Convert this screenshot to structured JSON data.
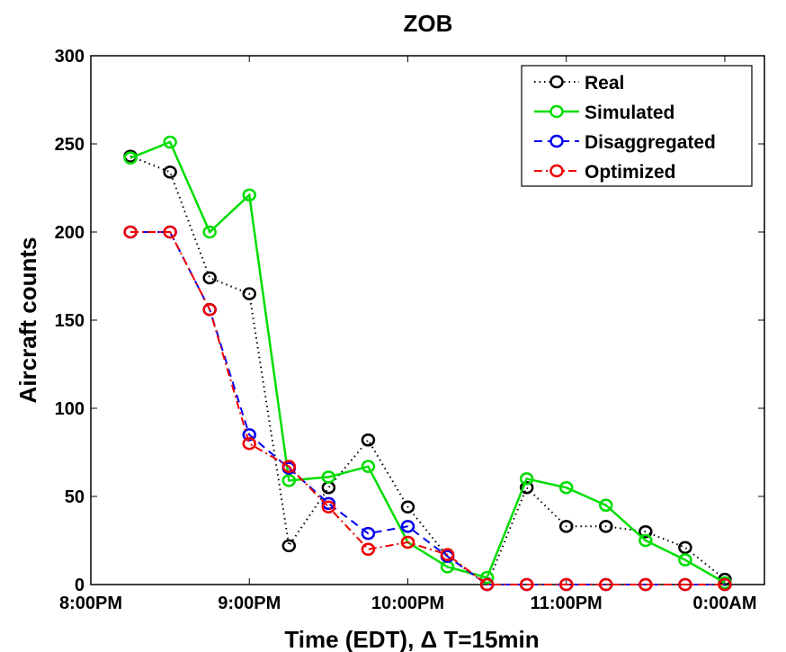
{
  "chart_data": {
    "type": "line",
    "title": "ZOB",
    "xlabel": "Time (EDT), Δ T=15min",
    "ylabel": "Aircraft counts",
    "x": [
      0.25,
      0.5,
      0.75,
      1.0,
      1.25,
      1.5,
      1.75,
      2.0,
      2.25,
      2.5,
      2.75,
      3.0,
      3.25,
      3.5,
      3.75,
      4.0
    ],
    "xlim": [
      0,
      4.25
    ],
    "ylim": [
      0,
      300
    ],
    "xticks": [
      0,
      1,
      2,
      3,
      4
    ],
    "xtick_labels": [
      "8:00PM",
      "9:00PM",
      "10:00PM",
      "11:00PM",
      "0:00AM"
    ],
    "yticks": [
      0,
      50,
      100,
      150,
      200,
      250,
      300
    ],
    "ytick_labels": [
      "0",
      "50",
      "100",
      "150",
      "200",
      "250",
      "300"
    ],
    "grid": false,
    "legend_position": "top-right",
    "series": [
      {
        "name": "Real",
        "color": "#000000",
        "dash": "dotted",
        "values": [
          243,
          234,
          174,
          165,
          22,
          55,
          82,
          44,
          16,
          0,
          55,
          33,
          33,
          30,
          21,
          3
        ]
      },
      {
        "name": "Simulated",
        "color": "#00dd00",
        "dash": "solid",
        "values": [
          242,
          251,
          200,
          221,
          59,
          61,
          67,
          24,
          10,
          4,
          60,
          55,
          45,
          25,
          14,
          1
        ]
      },
      {
        "name": "Disaggregated",
        "color": "#0000ee",
        "dash": "dashed",
        "values": [
          200,
          200,
          156,
          85,
          66,
          46,
          29,
          33,
          16,
          0,
          0,
          0,
          0,
          0,
          0,
          0
        ]
      },
      {
        "name": "Optimized",
        "color": "#ee0000",
        "dash": "dashdot",
        "values": [
          200,
          200,
          156,
          80,
          67,
          44,
          20,
          24,
          17,
          0,
          0,
          0,
          0,
          0,
          0,
          0
        ]
      }
    ]
  }
}
